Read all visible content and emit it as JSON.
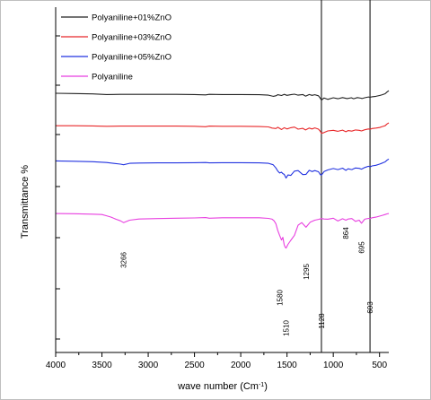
{
  "chart_data": {
    "type": "line",
    "xlabel": "wave number (Cm",
    "xlabel_sup": "-1",
    "xlabel_close": ")",
    "ylabel": "Transmittance %",
    "xlim": [
      4000,
      400
    ],
    "x_reversed": true,
    "x_ticks": [
      4000,
      3500,
      3000,
      2500,
      2000,
      1500,
      1000,
      500
    ],
    "x_tick_labels": [
      "4000",
      "3500",
      "3000",
      "2500",
      "2000",
      "1500",
      "1000",
      "500"
    ],
    "y_ticks_labeled": false,
    "grid": false,
    "legend_position": "top-left",
    "series": [
      {
        "name": "Polyaniline+01%ZnO",
        "color": "#222222",
        "x": [
          4000,
          3800,
          3600,
          3450,
          3300,
          3100,
          2900,
          2700,
          2500,
          2380,
          2340,
          2200,
          2000,
          1800,
          1700,
          1650,
          1620,
          1600,
          1560,
          1530,
          1500,
          1460,
          1420,
          1380,
          1330,
          1300,
          1260,
          1230,
          1200,
          1160,
          1140,
          1128,
          1100,
          1060,
          1000,
          950,
          900,
          850,
          805,
          780,
          740,
          700,
          690,
          660,
          620,
          603,
          580,
          540,
          500,
          470,
          440,
          420,
          400
        ],
        "y": [
          62,
          61,
          59,
          56,
          57,
          57,
          57,
          57,
          56,
          54,
          57,
          56,
          56,
          55,
          53,
          47,
          50,
          55,
          51,
          57,
          52,
          55,
          58,
          53,
          56,
          48,
          56,
          52,
          55,
          50,
          38,
          28,
          39,
          32,
          40,
          35,
          41,
          36,
          40,
          35,
          41,
          38,
          36,
          40,
          44,
          42,
          45,
          47,
          51,
          55,
          60,
          68,
          75
        ]
      },
      {
        "name": "Polyaniline+03%ZnO",
        "color": "#e8282a",
        "x": [
          4000,
          3800,
          3600,
          3450,
          3300,
          3100,
          2900,
          2700,
          2500,
          2380,
          2340,
          2200,
          2000,
          1800,
          1700,
          1660,
          1620,
          1600,
          1560,
          1530,
          1500,
          1460,
          1420,
          1380,
          1330,
          1300,
          1260,
          1230,
          1200,
          1160,
          1140,
          1128,
          1100,
          1060,
          1000,
          950,
          900,
          864,
          840,
          800,
          760,
          720,
          695,
          660,
          620,
          603,
          580,
          540,
          500,
          470,
          440,
          420,
          400
        ],
        "y": [
          26,
          26,
          25,
          23,
          24,
          24,
          24,
          24,
          23,
          21,
          24,
          23,
          23,
          22,
          20,
          14,
          12,
          18,
          7,
          16,
          10,
          16,
          19,
          9,
          13,
          5,
          14,
          10,
          15,
          9,
          -2,
          -12,
          -8,
          0,
          3,
          -2,
          4,
          -4,
          2,
          -1,
          5,
          3,
          0,
          6,
          10,
          8,
          12,
          14,
          17,
          22,
          26,
          34,
          40
        ]
      },
      {
        "name": "Polyaniline+05%ZnO",
        "color": "#2233e0",
        "x": [
          4000,
          3800,
          3600,
          3450,
          3300,
          3266,
          3200,
          3100,
          2900,
          2700,
          2500,
          2380,
          2340,
          2200,
          2000,
          1800,
          1700,
          1650,
          1620,
          1600,
          1580,
          1560,
          1545,
          1530,
          1510,
          1490,
          1460,
          1420,
          1380,
          1330,
          1295,
          1260,
          1230,
          1200,
          1160,
          1140,
          1128,
          1100,
          1060,
          1000,
          950,
          900,
          864,
          840,
          800,
          760,
          720,
          695,
          660,
          620,
          603,
          580,
          540,
          500,
          470,
          440,
          420,
          400
        ],
        "y": [
          -15,
          -17,
          -19,
          -23,
          -31,
          -34,
          -27,
          -26,
          -25,
          -25,
          -24,
          -23,
          -25,
          -24,
          -24,
          -25,
          -27,
          -34,
          -50,
          -65,
          -75,
          -71,
          -78,
          -82,
          -100,
          -85,
          -87,
          -66,
          -63,
          -83,
          -82,
          -62,
          -68,
          -63,
          -69,
          -83,
          -86,
          -68,
          -60,
          -53,
          -58,
          -51,
          -62,
          -54,
          -58,
          -50,
          -52,
          -56,
          -48,
          -42,
          -45,
          -40,
          -37,
          -31,
          -26,
          -20,
          -12,
          -6
        ]
      },
      {
        "name": "Polyaniline",
        "color": "#e83fe0",
        "x": [
          4000,
          3800,
          3600,
          3500,
          3450,
          3400,
          3350,
          3300,
          3266,
          3200,
          3100,
          2900,
          2700,
          2500,
          2380,
          2340,
          2200,
          2000,
          1800,
          1700,
          1660,
          1640,
          1620,
          1600,
          1580,
          1560,
          1545,
          1530,
          1520,
          1510,
          1490,
          1460,
          1420,
          1380,
          1340,
          1295,
          1250,
          1200,
          1160,
          1128,
          1100,
          1060,
          1000,
          950,
          900,
          864,
          840,
          800,
          760,
          720,
          695,
          660,
          620,
          603,
          580,
          540,
          500,
          470,
          440,
          420,
          400
        ],
        "y": [
          -67,
          -68,
          -70,
          -72,
          -78,
          -85,
          -95,
          -103,
          -112,
          -100,
          -94,
          -92,
          -90,
          -89,
          -87,
          -90,
          -88,
          -88,
          -88,
          -91,
          -95,
          -103,
          -118,
          -150,
          -175,
          -198,
          -185,
          -222,
          -234,
          -238,
          -220,
          -200,
          -175,
          -125,
          -112,
          -135,
          -110,
          -100,
          -96,
          -92,
          -94,
          -95,
          -90,
          -104,
          -93,
          -100,
          -94,
          -92,
          -106,
          -100,
          -115,
          -95,
          -91,
          -92,
          -88,
          -85,
          -80,
          -76,
          -72,
          -69,
          -67
        ]
      }
    ],
    "reference_lines": [
      {
        "x": 1128,
        "color": "#000000"
      },
      {
        "x": 603,
        "color": "#000000"
      }
    ],
    "annotations": [
      {
        "text": "3266",
        "x": 3266
      },
      {
        "text": "1580",
        "x": 1580
      },
      {
        "text": "1510",
        "x": 1510
      },
      {
        "text": "1295",
        "x": 1295
      },
      {
        "text": "1128",
        "x": 1128
      },
      {
        "text": "864",
        "x": 864
      },
      {
        "text": "695",
        "x": 695
      },
      {
        "text": "603",
        "x": 603
      }
    ]
  }
}
